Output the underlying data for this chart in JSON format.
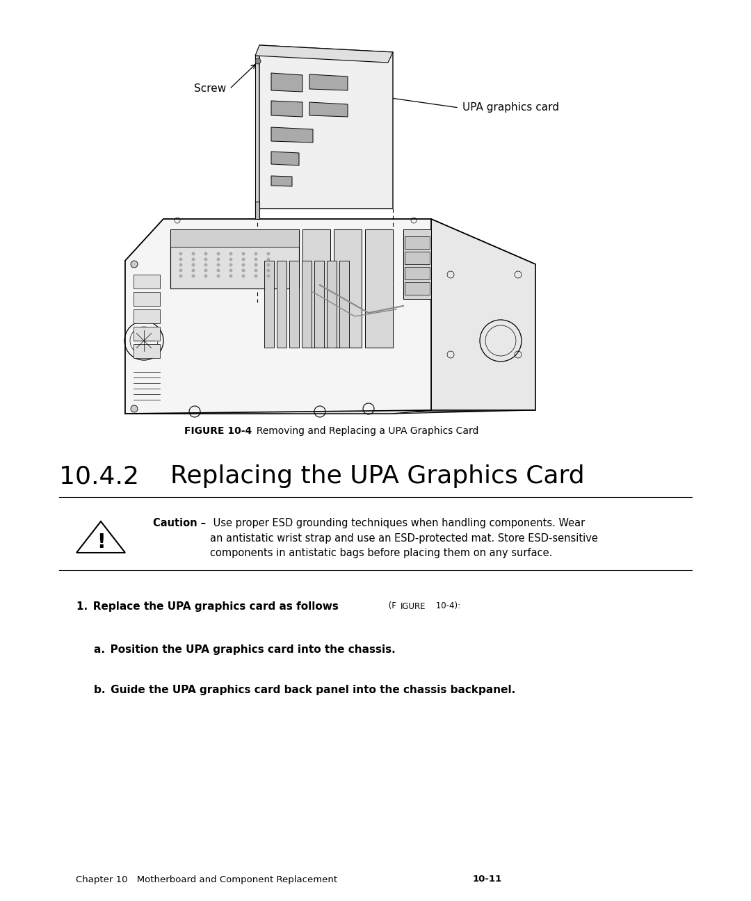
{
  "bg_color": "#ffffff",
  "page_width": 10.8,
  "page_height": 12.96,
  "dpi": 100,
  "figure_caption_bold": "FIGURE 10-4",
  "figure_caption_rest": "  Removing and Replacing a UPA Graphics Card",
  "section_number": "10.4.2",
  "section_title": "Replacing the UPA Graphics Card",
  "caution_title": "Caution –",
  "caution_body": " Use proper ESD grounding techniques when handling components. Wear\nan antistatic wrist strap and use an ESD-protected mat. Store ESD-sensitive\ncomponents in antistatic bags before placing them on any surface.",
  "step1_bold": "1. Replace the UPA graphics card as follows",
  "step1_ref": " (FɪGURE 10-4):",
  "step1a": "a. Position the UPA graphics card into the chassis.",
  "step1b": "b. Guide the UPA graphics card back panel into the chassis backpanel.",
  "footer_normal": "Chapter 10 Motherboard and Component Replacement",
  "footer_bold": "10-11",
  "label_screw": "Screw",
  "label_upa": "UPA graphics card",
  "lc": "#000000",
  "tc": "#000000"
}
